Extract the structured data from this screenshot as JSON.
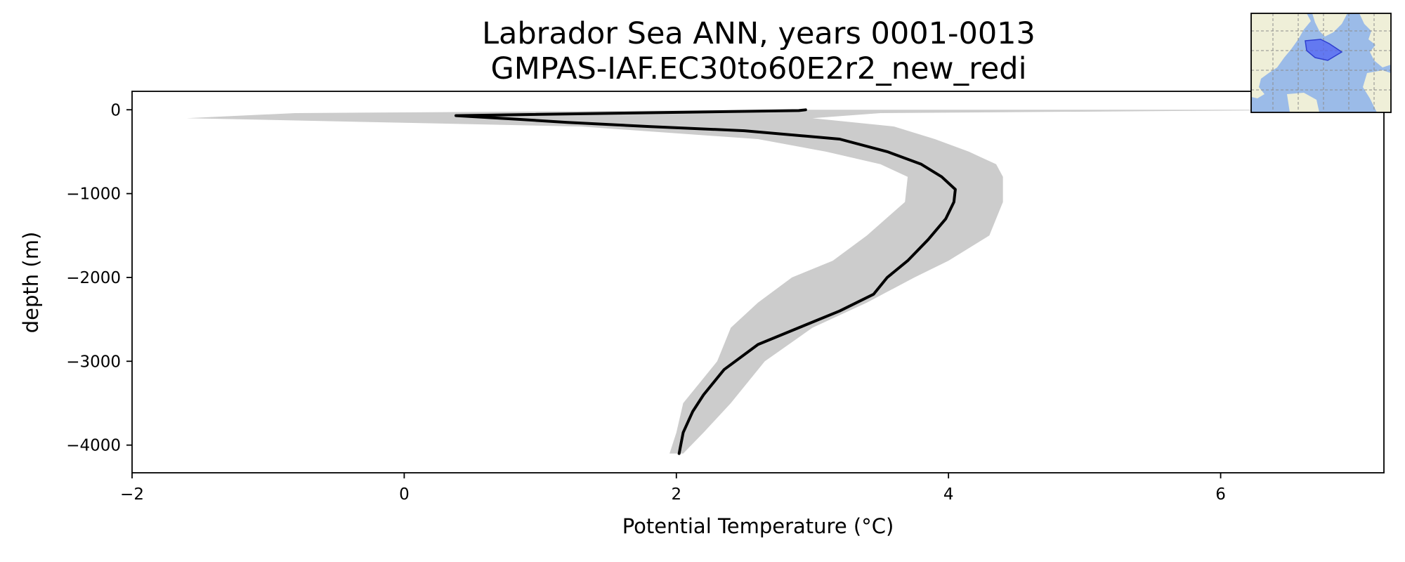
{
  "chart_data": {
    "type": "line",
    "title": "Labrador Sea ANN, years 0001-0013",
    "subtitle": "GMPAS-IAF.EC30to60E2r2_new_redi",
    "xlabel": "Potential Temperature (°C)",
    "ylabel": "depth (m)",
    "xlim": [
      -2.0,
      7.2
    ],
    "ylim": [
      -4330,
      220
    ],
    "x_ticks": [
      -2,
      0,
      2,
      4,
      6
    ],
    "x_tick_labels": [
      "−2",
      "0",
      "2",
      "4",
      "6"
    ],
    "y_ticks": [
      0,
      -1000,
      -2000,
      -3000,
      -4000
    ],
    "y_tick_labels": [
      "0",
      "−1000",
      "−2000",
      "−3000",
      "−4000"
    ],
    "grid": false,
    "series": [
      {
        "kind": "mean",
        "color": "#000000",
        "points": [
          [
            2.95,
            0
          ],
          [
            2.9,
            -10
          ],
          [
            0.38,
            -70
          ],
          [
            0.8,
            -110
          ],
          [
            1.2,
            -150
          ],
          [
            1.8,
            -200
          ],
          [
            2.5,
            -250
          ],
          [
            3.2,
            -350
          ],
          [
            3.55,
            -500
          ],
          [
            3.8,
            -650
          ],
          [
            3.95,
            -800
          ],
          [
            4.05,
            -950
          ],
          [
            4.04,
            -1100
          ],
          [
            3.98,
            -1300
          ],
          [
            3.85,
            -1550
          ],
          [
            3.7,
            -1800
          ],
          [
            3.55,
            -2000
          ],
          [
            3.45,
            -2200
          ],
          [
            3.2,
            -2400
          ],
          [
            2.9,
            -2600
          ],
          [
            2.6,
            -2800
          ],
          [
            2.35,
            -3100
          ],
          [
            2.2,
            -3400
          ],
          [
            2.12,
            -3600
          ],
          [
            2.05,
            -3850
          ],
          [
            2.02,
            -4100
          ]
        ]
      },
      {
        "kind": "range",
        "color": "#cccccc",
        "x_min": [
          2.85,
          -0.8,
          -1.6,
          1.3,
          2.6,
          3.1,
          3.5,
          3.7,
          3.68,
          3.4,
          3.15,
          2.85,
          2.6,
          2.4,
          2.3,
          2.05,
          2.0,
          1.95
        ],
        "x_max": [
          6.9,
          3.5,
          3.0,
          3.6,
          3.9,
          4.15,
          4.35,
          4.4,
          4.4,
          4.3,
          4.0,
          3.75,
          3.4,
          3.0,
          2.65,
          2.4,
          2.2,
          2.05
        ],
        "depth": [
          0,
          -40,
          -100,
          -200,
          -350,
          -500,
          -650,
          -800,
          -1100,
          -1500,
          -1800,
          -2000,
          -2300,
          -2600,
          -3000,
          -3500,
          -3850,
          -4100
        ]
      }
    ]
  },
  "inset_map": {
    "land_color": "#efefd8",
    "ocean_color": "#9bbbe8",
    "region_color": "#4b5cf5",
    "grid_color": "#999999"
  }
}
